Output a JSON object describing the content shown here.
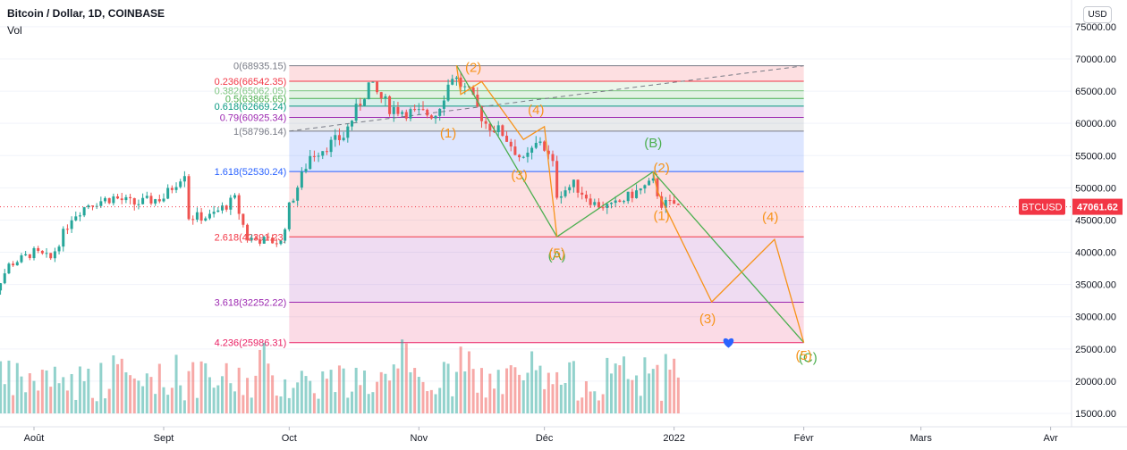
{
  "header": {
    "title": "Bitcoin / Dollar, 1D, COINBASE",
    "volume_label": "Vol",
    "currency": "USD"
  },
  "colors": {
    "up": "#26a69a",
    "down": "#ef5350",
    "wave_orange": "#f7931a",
    "wave_green": "#4caf50",
    "fib_blue": "#2962ff",
    "fib_purple": "#9c27b0",
    "fib_red": "#f23645",
    "price_tag": "#f23645"
  },
  "chart_data": {
    "type": "candlestick",
    "symbol_tag": "BTCUSD",
    "last_price": "47061.62",
    "y_ticks": [
      75000,
      70000,
      65000,
      60000,
      55000,
      50000,
      45000,
      40000,
      35000,
      30000,
      25000,
      20000,
      15000
    ],
    "x_ticks": [
      {
        "label": "Août",
        "date": "2021-08-01"
      },
      {
        "label": "Sept",
        "date": "2021-09-01"
      },
      {
        "label": "Oct",
        "date": "2021-10-01"
      },
      {
        "label": "Nov",
        "date": "2021-11-01"
      },
      {
        "label": "Déc",
        "date": "2021-12-01"
      },
      {
        "label": "2022",
        "date": "2022-01-01"
      },
      {
        "label": "Févr",
        "date": "2022-02-01"
      },
      {
        "label": "Mars",
        "date": "2022-03-01"
      },
      {
        "label": "Avr",
        "date": "2022-04-01"
      }
    ],
    "close_anchors": [
      [
        "2021-07-20",
        30800
      ],
      [
        "2021-07-26",
        38000
      ],
      [
        "2021-08-01",
        40000
      ],
      [
        "2021-08-05",
        39000
      ],
      [
        "2021-08-10",
        45500
      ],
      [
        "2021-08-14",
        47500
      ],
      [
        "2021-08-20",
        48500
      ],
      [
        "2021-08-25",
        47500
      ],
      [
        "2021-09-01",
        48500
      ],
      [
        "2021-09-06",
        52500
      ],
      [
        "2021-09-07",
        45500
      ],
      [
        "2021-09-12",
        45500
      ],
      [
        "2021-09-18",
        48200
      ],
      [
        "2021-09-21",
        42200
      ],
      [
        "2021-09-29",
        41500
      ],
      [
        "2021-10-01",
        47000
      ],
      [
        "2021-10-06",
        55000
      ],
      [
        "2021-10-14",
        58000
      ],
      [
        "2021-10-20",
        66000
      ],
      [
        "2021-10-25",
        62500
      ],
      [
        "2021-10-31",
        61500
      ],
      [
        "2021-11-05",
        61500
      ],
      [
        "2021-11-09",
        67500
      ],
      [
        "2021-11-13",
        64500
      ],
      [
        "2021-11-17",
        60000
      ],
      [
        "2021-11-21",
        58500
      ],
      [
        "2021-11-26",
        54000
      ],
      [
        "2021-11-30",
        57500
      ],
      [
        "2021-12-03",
        53500
      ],
      [
        "2021-12-04",
        49000
      ],
      [
        "2021-12-08",
        50500
      ],
      [
        "2021-12-13",
        47500
      ],
      [
        "2021-12-17",
        47000
      ],
      [
        "2021-12-22",
        49000
      ],
      [
        "2021-12-27",
        50800
      ],
      [
        "2021-12-29",
        47500
      ],
      [
        "2022-01-01",
        47500
      ],
      [
        "2022-01-02",
        47061
      ]
    ],
    "high_of_range": 69000,
    "volume_axis_max": 31000000000,
    "fib_levels": [
      {
        "label": "0(68935.15)",
        "value": 68935.15,
        "color": "#787b86"
      },
      {
        "label": "0.236(66542.35)",
        "value": 66542.35,
        "color": "#f23645"
      },
      {
        "label": "0.382(65062.05)",
        "value": 65062.05,
        "color": "#81c784"
      },
      {
        "label": "0.5(63865.65)",
        "value": 63865.65,
        "color": "#4caf50"
      },
      {
        "label": "0.618(62669.24)",
        "value": 62669.24,
        "color": "#089981"
      },
      {
        "label": "0.79(60925.34)",
        "value": 60925.34,
        "color": "#9c27b0"
      },
      {
        "label": "1(58796.14)",
        "value": 58796.14,
        "color": "#787b86"
      },
      {
        "label": "1.618(52530.24)",
        "value": 52530.24,
        "color": "#2962ff"
      },
      {
        "label": "2.618(42391.23)",
        "value": 42391.23,
        "color": "#f23645"
      },
      {
        "label": "3.618(32252.22)",
        "value": 32252.22,
        "color": "#9c27b0"
      },
      {
        "label": "4.236(25986.31)",
        "value": 25986.31,
        "color": "#e91e63"
      }
    ],
    "fib_range": {
      "from": "2021-10-01",
      "to": "2022-02-01"
    },
    "trendline": {
      "from": [
        "2021-10-01",
        58796
      ],
      "to": [
        "2022-02-01",
        68935
      ]
    },
    "primary_wave": [
      [
        "2021-11-10",
        69000
      ],
      [
        "2021-12-04",
        42400
      ],
      [
        "2021-12-27",
        52500
      ],
      [
        "2022-02-01",
        25986
      ]
    ],
    "primary_labels": [
      {
        "text": "(A)",
        "x": "2021-12-04",
        "y": 38800
      },
      {
        "text": "(B)",
        "x": "2021-12-27",
        "y": 56300
      },
      {
        "text": "(C)",
        "x": "2022-02-02",
        "y": 23000
      }
    ],
    "sub_waves": [
      [
        [
          "2021-11-10",
          69000
        ],
        [
          "2021-11-11",
          64500
        ],
        [
          "2021-11-16",
          66500
        ]
      ],
      [
        [
          "2021-11-16",
          66500
        ],
        [
          "2021-11-26",
          57500
        ],
        [
          "2021-12-01",
          59500
        ],
        [
          "2021-12-04",
          42400
        ]
      ],
      [
        [
          "2021-12-27",
          52500
        ],
        [
          "2021-12-28",
          49500
        ],
        [
          "2022-01-10",
          32300
        ],
        [
          "2022-01-25",
          42000
        ],
        [
          "2022-02-01",
          25986
        ]
      ]
    ],
    "sub_labels": [
      {
        "text": "(2)",
        "x": "2021-11-14",
        "y": 68000
      },
      {
        "text": "(1)",
        "x": "2021-11-08",
        "y": 57800
      },
      {
        "text": "(4)",
        "x": "2021-11-29",
        "y": 61400
      },
      {
        "text": "(3)",
        "x": "2021-11-25",
        "y": 51300
      },
      {
        "text": "(5)",
        "x": "2021-12-04",
        "y": 39200
      },
      {
        "text": "(2)",
        "x": "2021-12-29",
        "y": 52400
      },
      {
        "text": "(1)",
        "x": "2021-12-29",
        "y": 45000
      },
      {
        "text": "(3)",
        "x": "2022-01-09",
        "y": 29000
      },
      {
        "text": "(4)",
        "x": "2022-01-24",
        "y": 44800
      },
      {
        "text": "(5)",
        "x": "2022-02-01",
        "y": 23300
      }
    ],
    "marker": {
      "x": "2022-01-14",
      "y": 26000
    }
  }
}
